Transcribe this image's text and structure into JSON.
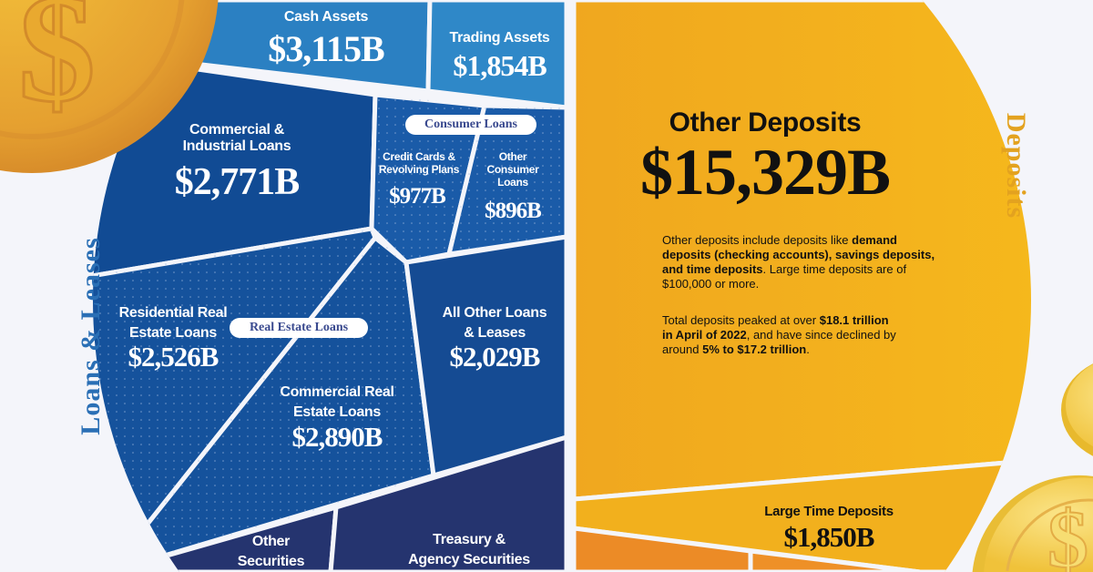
{
  "colors": {
    "background": "#f4f5fa",
    "cash": "#2b80c2",
    "trading": "#2f88c8",
    "commercial_industrial": "#114b94",
    "consumer": "#1a5ba8",
    "real_estate": "#15529c",
    "all_other_loans": "#154b93",
    "securities": "#25346f",
    "other_deposits": "#f4b51f",
    "large_time": "#f2b01d",
    "small_deposits": "#ec8b26",
    "loans_title": "#2a6fb5",
    "deposits_title": "#e3a21f"
  },
  "sections": {
    "loans_leases": "Loans & Leases",
    "deposits": "Deposits"
  },
  "groups": {
    "consumer": "Consumer Loans",
    "real_estate": "Real Estate Loans"
  },
  "cells": {
    "cash": {
      "label": "Cash Assets",
      "value": "$3,115B"
    },
    "trading": {
      "label": "Trading Assets",
      "value": "$1,854B"
    },
    "ci": {
      "label1": "Commercial &",
      "label2": "Industrial Loans",
      "value": "$2,771B"
    },
    "credit": {
      "label1": "Credit Cards &",
      "label2": "Revolving Plans",
      "value": "$977B"
    },
    "other_consumer": {
      "label1": "Other",
      "label2": "Consumer",
      "label3": "Loans",
      "value": "$896B"
    },
    "residential": {
      "label1": "Residential Real",
      "label2": "Estate Loans",
      "value": "$2,526B"
    },
    "commercial_re": {
      "label1": "Commercial Real",
      "label2": "Estate Loans",
      "value": "$2,890B"
    },
    "all_other": {
      "label1": "All Other Loans",
      "label2": "& Leases",
      "value": "$2,029B"
    },
    "other_securities": {
      "label1": "Other",
      "label2": "Securities"
    },
    "treasury": {
      "label1": "Treasury &",
      "label2": "Agency Securities"
    },
    "other_deposits": {
      "label": "Other Deposits",
      "value": "$15,329B"
    },
    "large_time": {
      "label": "Large Time Deposits",
      "value": "$1,850B"
    }
  },
  "notes": {
    "p1_a": "Other deposits include deposits like ",
    "p1_b": "demand deposits (checking accounts), savings deposits, and time deposits",
    "p1_c": ". Large time deposits are of $100,000 or more.",
    "p2_a": "Total deposits peaked at over ",
    "p2_b": "$18.1 trillion in April of 2022",
    "p2_c": ", and have since declined by around ",
    "p2_d": "5% to $17.2 trillion",
    "p2_e": "."
  },
  "icons": [
    "coin-icon",
    "coin-icon",
    "coin-icon"
  ]
}
